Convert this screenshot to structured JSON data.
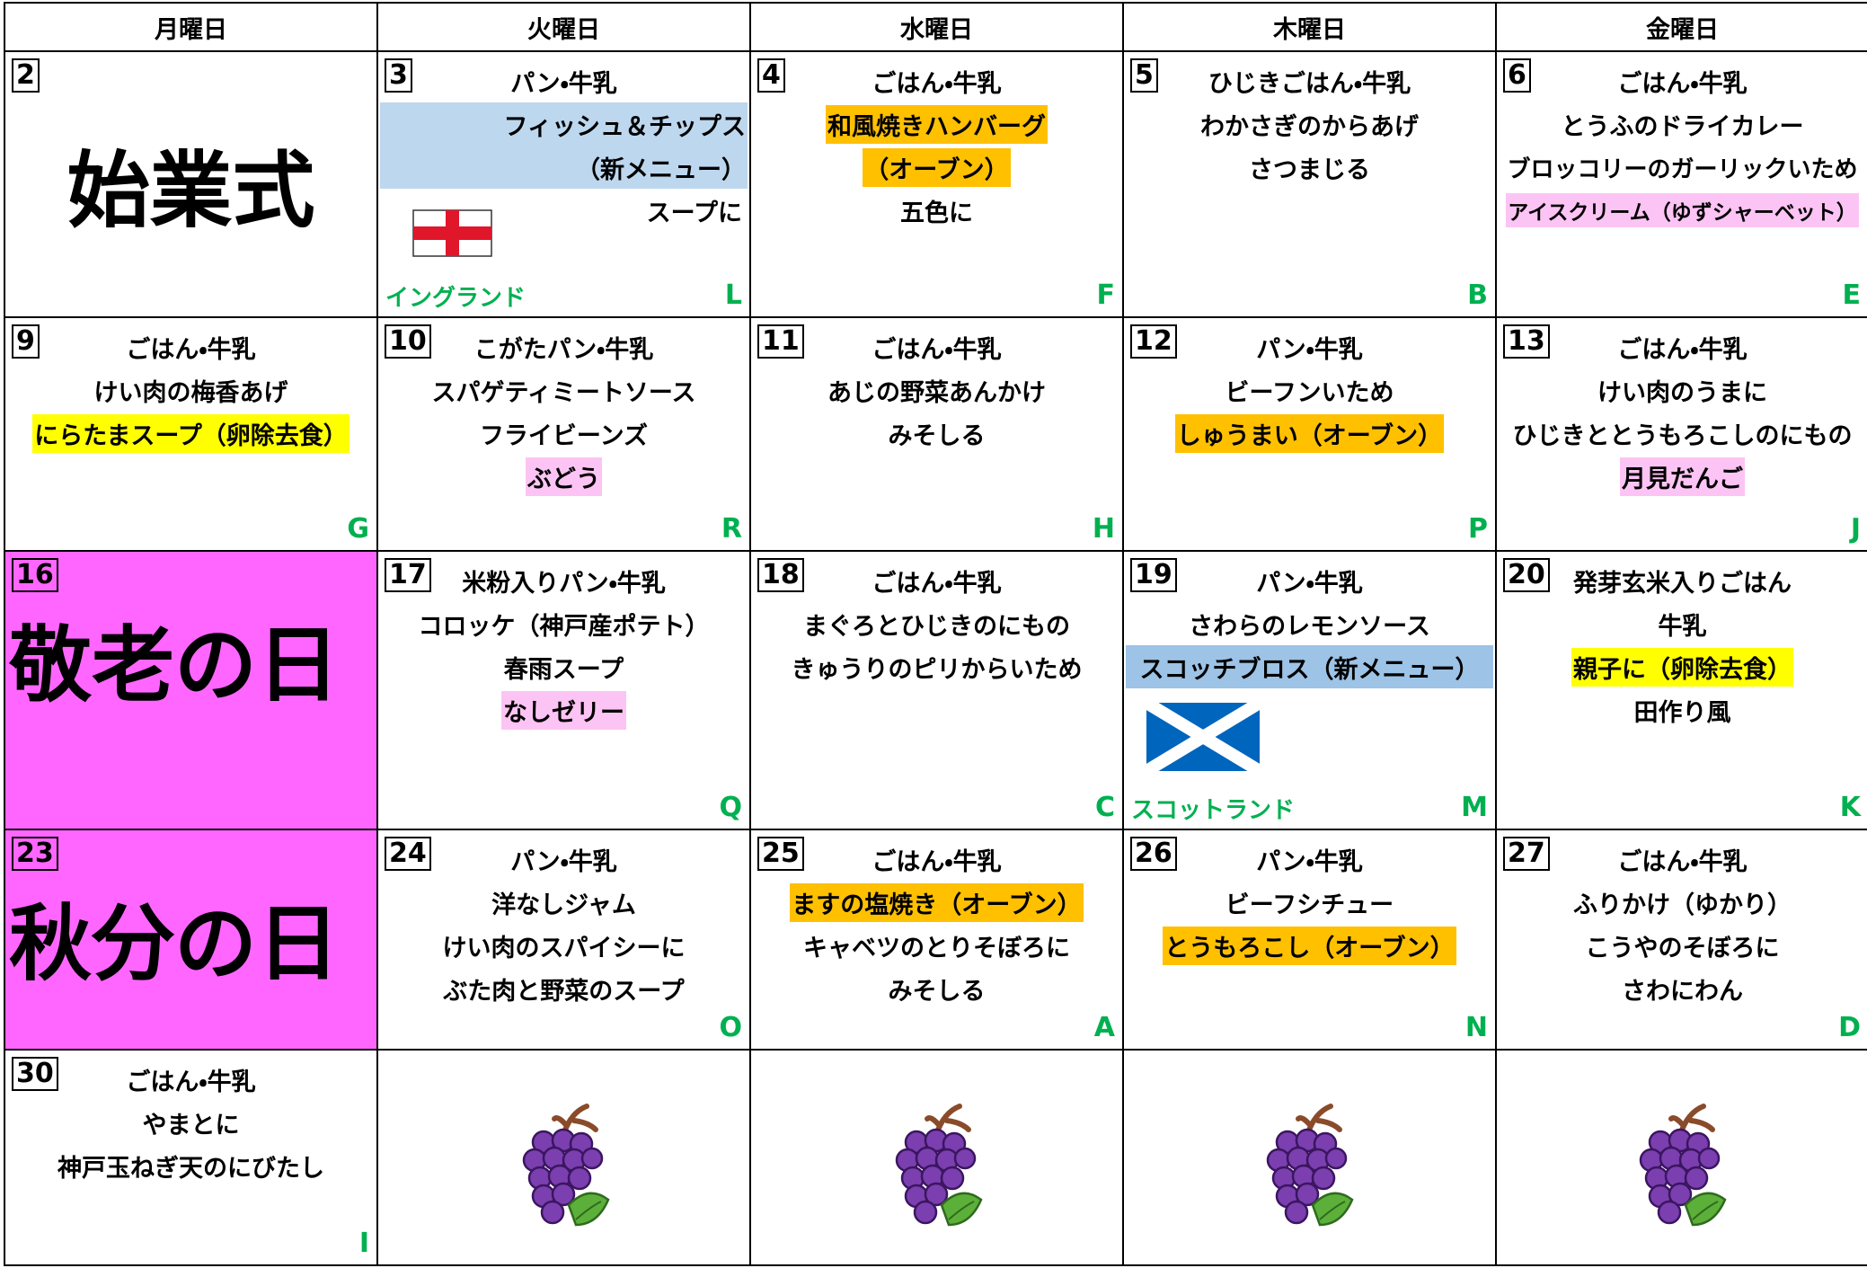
{
  "header": [
    "月曜日",
    "火曜日",
    "水曜日",
    "木曜日",
    "金曜日"
  ],
  "rows": [
    [
      {
        "day": 2,
        "holiday": "始業式"
      },
      {
        "day": 3,
        "lines": [
          "パン・牛乳",
          {
            "text": "フィッシュ＆チップス",
            "highlight_block": "#bdd7ee",
            "align": "right"
          },
          {
            "text": "（新メニュー）",
            "highlight_block": "#bdd7ee",
            "align": "right"
          },
          {
            "text": "スープに",
            "align": "right"
          }
        ],
        "code": "L",
        "country": "イングランド"
      },
      {
        "day": 4,
        "lines": [
          "ごはん・牛乳",
          {
            "text": "和風焼きハンバーグ",
            "highlight": "#ffc000"
          },
          {
            "text": "（オーブン）",
            "highlight": "#ffc000"
          },
          "五色に"
        ],
        "code": "F"
      },
      {
        "day": 5,
        "lines": [
          "ひじきごはん・牛乳",
          "わかさぎのからあげ",
          "さつまじる"
        ],
        "code": "B"
      },
      {
        "day": 6,
        "lines": [
          "ごはん・牛乳",
          "とうふのドライカレー",
          "ブロッコリーのガーリックいため",
          {
            "text": "アイスクリーム（ゆずシャーベット）",
            "highlight": "#fcc4f4"
          }
        ],
        "code": "E"
      }
    ],
    [
      {
        "day": 9,
        "lines": [
          "ごはん・牛乳",
          "けい肉の梅香あげ",
          {
            "text": "にらたまスープ（卵除去食）",
            "highlight": "#ffff00"
          }
        ],
        "code": "G"
      },
      {
        "day": 10,
        "lines": [
          "こがたパン・牛乳",
          "スパゲティミートソース",
          "フライビーンズ",
          {
            "text": "ぶどう",
            "highlight": "#fcc4f4"
          }
        ],
        "code": "R"
      },
      {
        "day": 11,
        "lines": [
          "ごはん・牛乳",
          "あじの野菜あんかけ",
          "みそしる"
        ],
        "code": "H"
      },
      {
        "day": 12,
        "lines": [
          "パン・牛乳",
          "ビーフンいため",
          {
            "text": "しゅうまい（オーブン）",
            "highlight": "#ffc000"
          }
        ],
        "code": "P"
      },
      {
        "day": 13,
        "lines": [
          "ごはん・牛乳",
          "けい肉のうまに",
          "ひじきととうもろこしのにもの",
          {
            "text": "月見だんご",
            "highlight": "#fcc4f4"
          }
        ],
        "code": "J"
      }
    ],
    [
      {
        "day": 16,
        "holiday": "敬老の日",
        "background": "#ff66ff"
      },
      {
        "day": 17,
        "lines": [
          "米粉入りパン・牛乳",
          "コロッケ（神戸産ポテト）",
          "春雨スープ",
          {
            "text": "なしゼリー",
            "highlight": "#fcc4f4"
          }
        ],
        "code": "Q"
      },
      {
        "day": 18,
        "lines": [
          "ごはん・牛乳",
          "まぐろとひじきのにもの",
          "きゅうりのピリからいため"
        ],
        "code": "C"
      },
      {
        "day": 19,
        "lines": [
          "パン・牛乳",
          "さわらのレモンソース",
          {
            "text": "スコッチブロス（新メニュー）",
            "highlight_block": "#9dc3e6"
          }
        ],
        "code": "M",
        "country": "スコットランド"
      },
      {
        "day": 20,
        "lines": [
          "発芽玄米入りごはん",
          "牛乳",
          {
            "text": "親子に（卵除去食）",
            "highlight": "#ffff00"
          },
          "田作り風"
        ],
        "code": "K"
      }
    ],
    [
      {
        "day": 23,
        "holiday": "秋分の日",
        "background": "#ff66ff"
      },
      {
        "day": 24,
        "lines": [
          "パン・牛乳",
          "洋なしジャム",
          "けい肉のスパイシーに",
          "ぶた肉と野菜のスープ"
        ],
        "code": "O"
      },
      {
        "day": 25,
        "lines": [
          "ごはん・牛乳",
          {
            "text": "ますの塩焼き（オーブン）",
            "highlight": "#ffc000"
          },
          "キャベツのとりそぼろに",
          "みそしる"
        ],
        "code": "A"
      },
      {
        "day": 26,
        "lines": [
          "パン・牛乳",
          "ビーフシチュー",
          {
            "text": "とうもろこし（オーブン）",
            "highlight": "#ffc000"
          }
        ],
        "code": "N"
      },
      {
        "day": 27,
        "lines": [
          "ごはん・牛乳",
          "ふりかけ（ゆかり）",
          "こうやのそぼろに",
          "さわにわん"
        ],
        "code": "D"
      }
    ],
    [
      {
        "day": 30,
        "lines": [
          "ごはん・牛乳",
          "やまとに",
          "神戸玉ねぎ天のにびたし"
        ],
        "code": "I"
      }
    ]
  ]
}
